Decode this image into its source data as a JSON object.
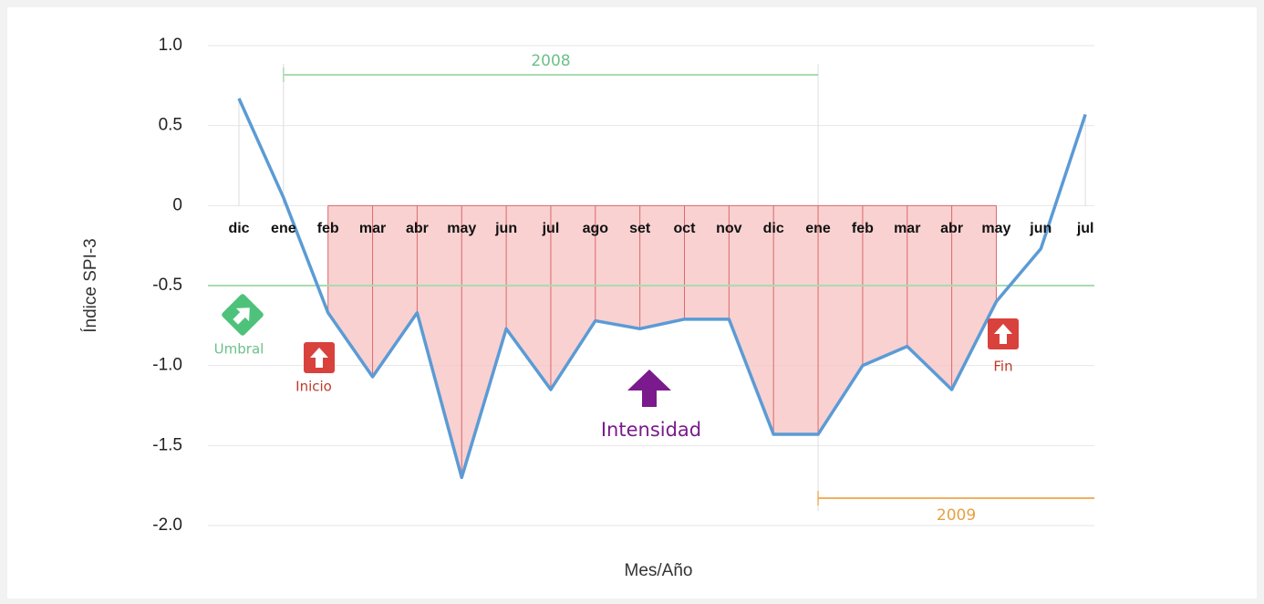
{
  "chart_data": {
    "type": "line",
    "y_label": "Índice SPI-3",
    "x_label": "Mes/Año",
    "categories": [
      "dic",
      "ene",
      "feb",
      "mar",
      "abr",
      "may",
      "jun",
      "jul",
      "ago",
      "set",
      "oct",
      "nov",
      "dic",
      "ene",
      "feb",
      "mar",
      "abr",
      "may",
      "jun",
      "jul"
    ],
    "values": [
      0.67,
      0.05,
      -0.67,
      -1.07,
      -0.67,
      -1.7,
      -0.77,
      -1.15,
      -0.72,
      -0.77,
      -0.71,
      -0.71,
      -1.43,
      -1.43,
      -1.0,
      -0.88,
      -1.15,
      -0.6,
      -0.27,
      0.57
    ],
    "color": "#5b9bd5",
    "fill_color": "#f8c6c6",
    "fill_line_color": "#d9696b",
    "threshold": -0.5,
    "threshold_label": "Umbral",
    "threshold_color": "#a8dcb0",
    "ylim": [
      -2,
      1
    ],
    "yticks": [
      {
        "value": -2,
        "label": "-2.0"
      },
      -1.5,
      {
        "value": -1,
        "label": "-1.0"
      },
      -0.5,
      0,
      0.5,
      {
        "value": 1,
        "label": "1.0"
      }
    ],
    "grid": true,
    "periods": [
      "2008",
      "2009"
    ],
    "annotations": {
      "start": "Inicio",
      "intensity": "Intensidad",
      "end": "Fin"
    }
  }
}
